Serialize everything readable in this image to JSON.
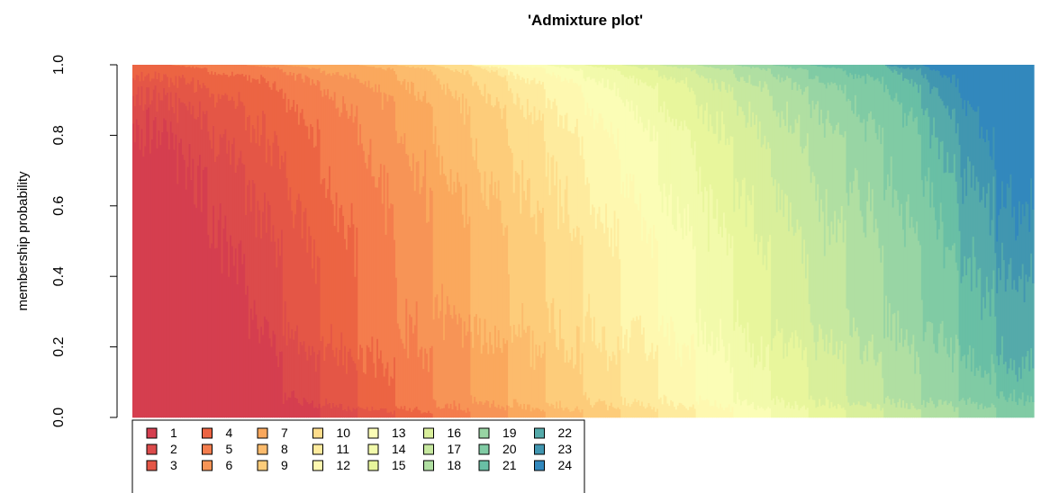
{
  "chart_data": {
    "type": "bar",
    "subtype": "stacked-admixture",
    "title": "'Admixture plot'",
    "xlabel": "",
    "ylabel": "membership probability",
    "ylim": [
      0,
      1
    ],
    "yticks": [
      "0.0",
      "0.2",
      "0.4",
      "0.6",
      "0.8",
      "1.0"
    ],
    "grid": false,
    "legend": "bottom-left",
    "legend_columns": 8,
    "clusters": [
      {
        "name": "1",
        "color": "#d53e4f"
      },
      {
        "name": "2",
        "color": "#dc4b4b"
      },
      {
        "name": "3",
        "color": "#e45646"
      },
      {
        "name": "4",
        "color": "#ec6443"
      },
      {
        "name": "5",
        "color": "#f47d4d"
      },
      {
        "name": "6",
        "color": "#f79456"
      },
      {
        "name": "7",
        "color": "#faa85d"
      },
      {
        "name": "8",
        "color": "#fcbb6c"
      },
      {
        "name": "9",
        "color": "#fdcc7a"
      },
      {
        "name": "10",
        "color": "#fedd8c"
      },
      {
        "name": "11",
        "color": "#feeb9e"
      },
      {
        "name": "12",
        "color": "#fef8b0"
      },
      {
        "name": "13",
        "color": "#fbfdb6"
      },
      {
        "name": "14",
        "color": "#f2faab"
      },
      {
        "name": "15",
        "color": "#e8f69c"
      },
      {
        "name": "16",
        "color": "#d9ef9b"
      },
      {
        "name": "17",
        "color": "#c6e89f"
      },
      {
        "name": "18",
        "color": "#b0dfa2"
      },
      {
        "name": "19",
        "color": "#98d5a4"
      },
      {
        "name": "20",
        "color": "#80cba4"
      },
      {
        "name": "21",
        "color": "#69bfa5"
      },
      {
        "name": "22",
        "color": "#55aaaa"
      },
      {
        "name": "23",
        "color": "#4196b0"
      },
      {
        "name": "24",
        "color": "#3288bd"
      }
    ],
    "series": [
      {
        "name": "1",
        "values": [
          0.82,
          0.78,
          0.55,
          0.3,
          0.06,
          0.0,
          0.0,
          0.0,
          0.0,
          0.0,
          0.0,
          0.0,
          0.0,
          0.0,
          0.0,
          0.0,
          0.0,
          0.0,
          0.0,
          0.0,
          0.0,
          0.0,
          0.0,
          0.0
        ]
      },
      {
        "name": "2",
        "values": [
          0.1,
          0.12,
          0.25,
          0.35,
          0.2,
          0.04,
          0.0,
          0.0,
          0.0,
          0.0,
          0.0,
          0.0,
          0.0,
          0.0,
          0.0,
          0.0,
          0.0,
          0.0,
          0.0,
          0.0,
          0.0,
          0.0,
          0.0,
          0.0
        ]
      },
      {
        "name": "3",
        "values": [
          0.05,
          0.06,
          0.12,
          0.2,
          0.4,
          0.2,
          0.03,
          0.0,
          0.0,
          0.0,
          0.0,
          0.0,
          0.0,
          0.0,
          0.0,
          0.0,
          0.0,
          0.0,
          0.0,
          0.0,
          0.0,
          0.0,
          0.0,
          0.0
        ]
      },
      {
        "name": "4",
        "values": [
          0.03,
          0.04,
          0.06,
          0.12,
          0.24,
          0.46,
          0.17,
          0.03,
          0.0,
          0.0,
          0.0,
          0.0,
          0.0,
          0.0,
          0.0,
          0.0,
          0.0,
          0.0,
          0.0,
          0.0,
          0.0,
          0.0,
          0.0,
          0.0
        ]
      },
      {
        "name": "5",
        "values": [
          0.0,
          0.0,
          0.02,
          0.03,
          0.08,
          0.22,
          0.6,
          0.25,
          0.04,
          0.0,
          0.0,
          0.0,
          0.0,
          0.0,
          0.0,
          0.0,
          0.0,
          0.0,
          0.0,
          0.0,
          0.0,
          0.0,
          0.0,
          0.0
        ]
      },
      {
        "name": "6",
        "values": [
          0.0,
          0.0,
          0.0,
          0.0,
          0.02,
          0.06,
          0.15,
          0.55,
          0.3,
          0.05,
          0.0,
          0.0,
          0.0,
          0.0,
          0.0,
          0.0,
          0.0,
          0.0,
          0.0,
          0.0,
          0.0,
          0.0,
          0.0,
          0.0
        ]
      },
      {
        "name": "7",
        "values": [
          0.0,
          0.0,
          0.0,
          0.0,
          0.0,
          0.02,
          0.05,
          0.14,
          0.45,
          0.25,
          0.04,
          0.0,
          0.0,
          0.0,
          0.0,
          0.0,
          0.0,
          0.0,
          0.0,
          0.0,
          0.0,
          0.0,
          0.0,
          0.0
        ]
      },
      {
        "name": "8",
        "values": [
          0.0,
          0.0,
          0.0,
          0.0,
          0.0,
          0.0,
          0.0,
          0.03,
          0.18,
          0.45,
          0.26,
          0.04,
          0.0,
          0.0,
          0.0,
          0.0,
          0.0,
          0.0,
          0.0,
          0.0,
          0.0,
          0.0,
          0.0,
          0.0
        ]
      },
      {
        "name": "9",
        "values": [
          0.0,
          0.0,
          0.0,
          0.0,
          0.0,
          0.0,
          0.0,
          0.0,
          0.03,
          0.2,
          0.45,
          0.24,
          0.05,
          0.0,
          0.0,
          0.0,
          0.0,
          0.0,
          0.0,
          0.0,
          0.0,
          0.0,
          0.0,
          0.0
        ]
      },
      {
        "name": "10",
        "values": [
          0.0,
          0.0,
          0.0,
          0.0,
          0.0,
          0.0,
          0.0,
          0.0,
          0.0,
          0.05,
          0.18,
          0.42,
          0.22,
          0.05,
          0.0,
          0.0,
          0.0,
          0.0,
          0.0,
          0.0,
          0.0,
          0.0,
          0.0,
          0.0
        ]
      },
      {
        "name": "11",
        "values": [
          0.0,
          0.0,
          0.0,
          0.0,
          0.0,
          0.0,
          0.0,
          0.0,
          0.0,
          0.0,
          0.05,
          0.2,
          0.4,
          0.22,
          0.05,
          0.0,
          0.0,
          0.0,
          0.0,
          0.0,
          0.0,
          0.0,
          0.0,
          0.0
        ]
      },
      {
        "name": "12",
        "values": [
          0.0,
          0.0,
          0.0,
          0.0,
          0.0,
          0.0,
          0.0,
          0.0,
          0.0,
          0.0,
          0.02,
          0.08,
          0.22,
          0.4,
          0.22,
          0.05,
          0.0,
          0.0,
          0.0,
          0.0,
          0.0,
          0.0,
          0.0,
          0.0
        ]
      },
      {
        "name": "13",
        "values": [
          0.0,
          0.0,
          0.0,
          0.0,
          0.0,
          0.0,
          0.0,
          0.0,
          0.0,
          0.0,
          0.0,
          0.02,
          0.08,
          0.22,
          0.4,
          0.22,
          0.05,
          0.0,
          0.0,
          0.0,
          0.0,
          0.0,
          0.0,
          0.0
        ]
      },
      {
        "name": "14",
        "values": [
          0.0,
          0.0,
          0.0,
          0.0,
          0.0,
          0.0,
          0.0,
          0.0,
          0.0,
          0.0,
          0.0,
          0.0,
          0.03,
          0.08,
          0.22,
          0.4,
          0.22,
          0.05,
          0.0,
          0.0,
          0.0,
          0.0,
          0.0,
          0.0
        ]
      },
      {
        "name": "15",
        "values": [
          0.0,
          0.0,
          0.0,
          0.0,
          0.0,
          0.0,
          0.0,
          0.0,
          0.0,
          0.0,
          0.0,
          0.0,
          0.0,
          0.03,
          0.08,
          0.22,
          0.4,
          0.22,
          0.05,
          0.0,
          0.0,
          0.0,
          0.0,
          0.0
        ]
      },
      {
        "name": "16",
        "values": [
          0.0,
          0.0,
          0.0,
          0.0,
          0.0,
          0.0,
          0.0,
          0.0,
          0.0,
          0.0,
          0.0,
          0.0,
          0.0,
          0.0,
          0.03,
          0.08,
          0.22,
          0.4,
          0.22,
          0.05,
          0.0,
          0.0,
          0.0,
          0.0
        ]
      },
      {
        "name": "17",
        "values": [
          0.0,
          0.0,
          0.0,
          0.0,
          0.0,
          0.0,
          0.0,
          0.0,
          0.0,
          0.0,
          0.0,
          0.0,
          0.0,
          0.0,
          0.0,
          0.03,
          0.08,
          0.22,
          0.4,
          0.22,
          0.05,
          0.0,
          0.0,
          0.0
        ]
      },
      {
        "name": "18",
        "values": [
          0.0,
          0.0,
          0.0,
          0.0,
          0.0,
          0.0,
          0.0,
          0.0,
          0.0,
          0.0,
          0.0,
          0.0,
          0.0,
          0.0,
          0.0,
          0.0,
          0.03,
          0.08,
          0.22,
          0.4,
          0.22,
          0.05,
          0.0,
          0.0
        ]
      },
      {
        "name": "19",
        "values": [
          0.0,
          0.0,
          0.0,
          0.0,
          0.0,
          0.0,
          0.0,
          0.0,
          0.0,
          0.0,
          0.0,
          0.0,
          0.0,
          0.0,
          0.0,
          0.0,
          0.0,
          0.03,
          0.08,
          0.22,
          0.4,
          0.22,
          0.05,
          0.0
        ]
      },
      {
        "name": "20",
        "values": [
          0.0,
          0.0,
          0.0,
          0.0,
          0.0,
          0.0,
          0.0,
          0.0,
          0.0,
          0.0,
          0.0,
          0.0,
          0.0,
          0.0,
          0.0,
          0.0,
          0.0,
          0.0,
          0.03,
          0.08,
          0.22,
          0.4,
          0.12,
          0.05
        ]
      },
      {
        "name": "21",
        "values": [
          0.0,
          0.0,
          0.0,
          0.0,
          0.0,
          0.0,
          0.0,
          0.0,
          0.0,
          0.0,
          0.0,
          0.0,
          0.0,
          0.0,
          0.0,
          0.0,
          0.0,
          0.0,
          0.0,
          0.03,
          0.06,
          0.2,
          0.28,
          0.1
        ]
      },
      {
        "name": "22",
        "values": [
          0.0,
          0.0,
          0.0,
          0.0,
          0.0,
          0.0,
          0.0,
          0.0,
          0.0,
          0.0,
          0.0,
          0.0,
          0.0,
          0.0,
          0.0,
          0.0,
          0.0,
          0.0,
          0.0,
          0.0,
          0.0,
          0.1,
          0.25,
          0.25
        ]
      },
      {
        "name": "23",
        "values": [
          0.0,
          0.0,
          0.0,
          0.0,
          0.0,
          0.0,
          0.0,
          0.0,
          0.0,
          0.0,
          0.0,
          0.0,
          0.0,
          0.0,
          0.0,
          0.0,
          0.0,
          0.0,
          0.0,
          0.0,
          0.0,
          0.03,
          0.2,
          0.2
        ]
      },
      {
        "name": "24",
        "values": [
          0.0,
          0.0,
          0.0,
          0.0,
          0.0,
          0.0,
          0.0,
          0.0,
          0.0,
          0.0,
          0.0,
          0.0,
          0.0,
          0.0,
          0.0,
          0.0,
          0.0,
          0.0,
          0.0,
          0.0,
          0.0,
          0.0,
          0.1,
          0.4
        ]
      }
    ],
    "individual_groups": 24,
    "bars_per_group": 22,
    "noise": 0.35
  }
}
